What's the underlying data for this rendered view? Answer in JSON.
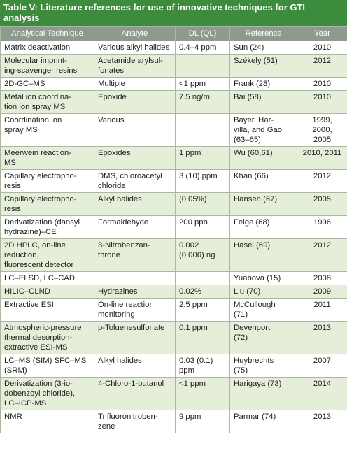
{
  "title": "Table V: Literature references for use of innovative techniques for GTI\nanalysis",
  "table": {
    "header": [
      "Analytical Technique",
      "Analyte",
      "DL (QL)",
      "Reference",
      "Year"
    ],
    "rows": [
      [
        "Matrix deactivation",
        "Various alkyl halides",
        "0.4–4 ppm",
        "Sun (24)",
        "2010"
      ],
      [
        "Molecular imprint-\ning-scavenger resins",
        "Acetamide arylsul-\nfonates",
        null,
        "Székely (51)",
        "2012"
      ],
      [
        "2D-GC–MS",
        "Multiple",
        "<1 ppm",
        "Frank (28)",
        "2010"
      ],
      [
        "Metal ion coordina-\ntion ion spray MS",
        "Epoxide",
        "7.5 ng/mL",
        "Bai (58)",
        "2010"
      ],
      [
        "Coordination ion\nspray MS",
        "Various",
        null,
        "Bayer, Har-\nvilla, and Gao\n(63–65)",
        "1999,\n2000,\n2005"
      ],
      [
        "Meerwein reaction-\nMS",
        "Epoxides",
        "1 ppm",
        "Wu (60,61)",
        "2010, 2011"
      ],
      [
        "Capillary electropho-\nresis",
        "DMS, chloroacetyl\nchloride",
        "3 (10) ppm",
        "Khan (66)",
        "2012"
      ],
      [
        "Capillary electropho-\nresis",
        "Alkyl halides",
        "(0.05%)",
        "Hansen (67)",
        "2005"
      ],
      [
        "Derivatization (dansyl\nhydrazine)–CE",
        "Formaldehyde",
        "200 ppb",
        "Feige (68)",
        "1996"
      ],
      [
        "2D HPLC, on-line\nreduction,\nfluorescent detector",
        "3-Nitrobenzan-\nthrone",
        "0.002\n(0.006) ng",
        "Hasei (69)",
        "2012"
      ],
      [
        "LC–ELSD, LC–CAD",
        null,
        null,
        "Yuabova (15)",
        "2008"
      ],
      [
        "HILIC–CLND",
        "Hydrazines",
        "0.02%",
        "Liu (70)",
        "2009"
      ],
      [
        "Extractive ESI",
        "On-line reaction\nmonitoring",
        "2.5 ppm",
        "McCullough\n(71)",
        "2011"
      ],
      [
        "Atmospheric-pressure\nthermal desorption-\nextractive ESI-MS",
        "p-Toluenesulfonate",
        "0.1 ppm",
        "Devenport\n(72)",
        "2013"
      ],
      [
        "LC–MS (SIM) SFC–MS\n(SRM)",
        "Alkyl halides",
        "0.03 (0.1)\nppm",
        "Huybrechts\n(75)",
        "2007"
      ],
      [
        "Derivatization (3-io-\ndobenzoyl chloride),\nLC–ICP-MS",
        "4-Chloro-1-butanol",
        "<1 ppm",
        "Harigaya (73)",
        "2014"
      ],
      [
        "NMR",
        "Trifluoronitroben-\nzene",
        "9 ppm",
        "Parmar (74)",
        "2013"
      ]
    ]
  }
}
